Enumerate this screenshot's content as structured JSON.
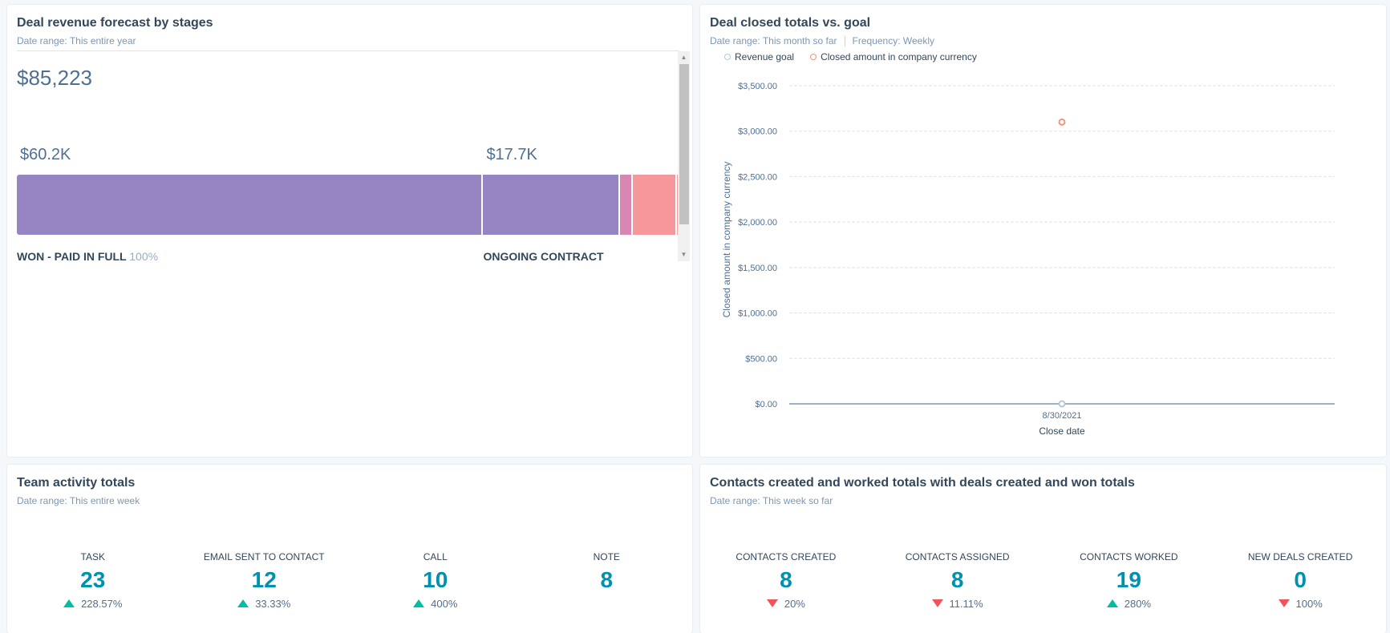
{
  "forecast": {
    "title": "Deal revenue forecast by stages",
    "date_range": "Date range: This entire year",
    "total": "$85,223",
    "segments": [
      {
        "value_label": "$60.2K",
        "stage": "WON - PAID IN FULL",
        "pct": "100%",
        "share": 0.7065,
        "color": "#9784c2"
      },
      {
        "value_label": "$17.7K",
        "stage": "ONGOING CONTRACT",
        "pct": "",
        "share": 0.2077,
        "color": "#9784c2"
      },
      {
        "value_label": "",
        "stage": "",
        "pct": "",
        "share": 0.0185,
        "color": "#d887b2"
      },
      {
        "value_label": "",
        "stage": "",
        "pct": "",
        "share": 0.067,
        "color": "#f6979b"
      },
      {
        "value_label": "",
        "stage": "",
        "pct": "",
        "share": 0.003,
        "color": "#fb9e9a"
      }
    ]
  },
  "goal_chart": {
    "title": "Deal closed totals vs. goal",
    "date_range": "Date range: This month so far",
    "frequency": "Frequency: Weekly",
    "legend": [
      {
        "label": "Revenue goal",
        "color": "#b6c7d9"
      },
      {
        "label": "Closed amount in company currency",
        "color": "#f2947c"
      }
    ]
  },
  "chart_data": {
    "type": "scatter",
    "title": "Deal closed totals vs. goal",
    "xlabel": "Close date",
    "ylabel": "Closed amount in company currency",
    "x": [
      "8/30/2021"
    ],
    "ylim": [
      0,
      3500
    ],
    "yticks": [
      0,
      500,
      1000,
      1500,
      2000,
      2500,
      3000,
      3500
    ],
    "ytick_labels": [
      "$0.00",
      "$500.00",
      "$1,000.00",
      "$1,500.00",
      "$2,000.00",
      "$2,500.00",
      "$3,000.00",
      "$3,500.00"
    ],
    "grid": true,
    "legend_position": "top-left",
    "series": [
      {
        "name": "Revenue goal",
        "values": [
          0
        ],
        "color": "#b6c7d9"
      },
      {
        "name": "Closed amount in company currency",
        "values": [
          3100
        ],
        "color": "#f2947c"
      }
    ]
  },
  "team": {
    "title": "Team activity totals",
    "date_range": "Date range: This entire week",
    "stats": [
      {
        "label": "TASK",
        "value": "23",
        "change": "228.57%",
        "dir": "up"
      },
      {
        "label": "EMAIL SENT TO CONTACT",
        "value": "12",
        "change": "33.33%",
        "dir": "up"
      },
      {
        "label": "CALL",
        "value": "10",
        "change": "400%",
        "dir": "up"
      },
      {
        "label": "NOTE",
        "value": "8",
        "change": "",
        "dir": ""
      }
    ]
  },
  "contacts": {
    "title": "Contacts created and worked totals with deals created and won totals",
    "date_range": "Date range: This week so far",
    "stats": [
      {
        "label": "CONTACTS CREATED",
        "value": "8",
        "change": "20%",
        "dir": "down"
      },
      {
        "label": "CONTACTS ASSIGNED",
        "value": "8",
        "change": "11.11%",
        "dir": "down"
      },
      {
        "label": "CONTACTS WORKED",
        "value": "19",
        "change": "280%",
        "dir": "up"
      },
      {
        "label": "NEW DEALS CREATED",
        "value": "0",
        "change": "100%",
        "dir": "down"
      }
    ]
  }
}
